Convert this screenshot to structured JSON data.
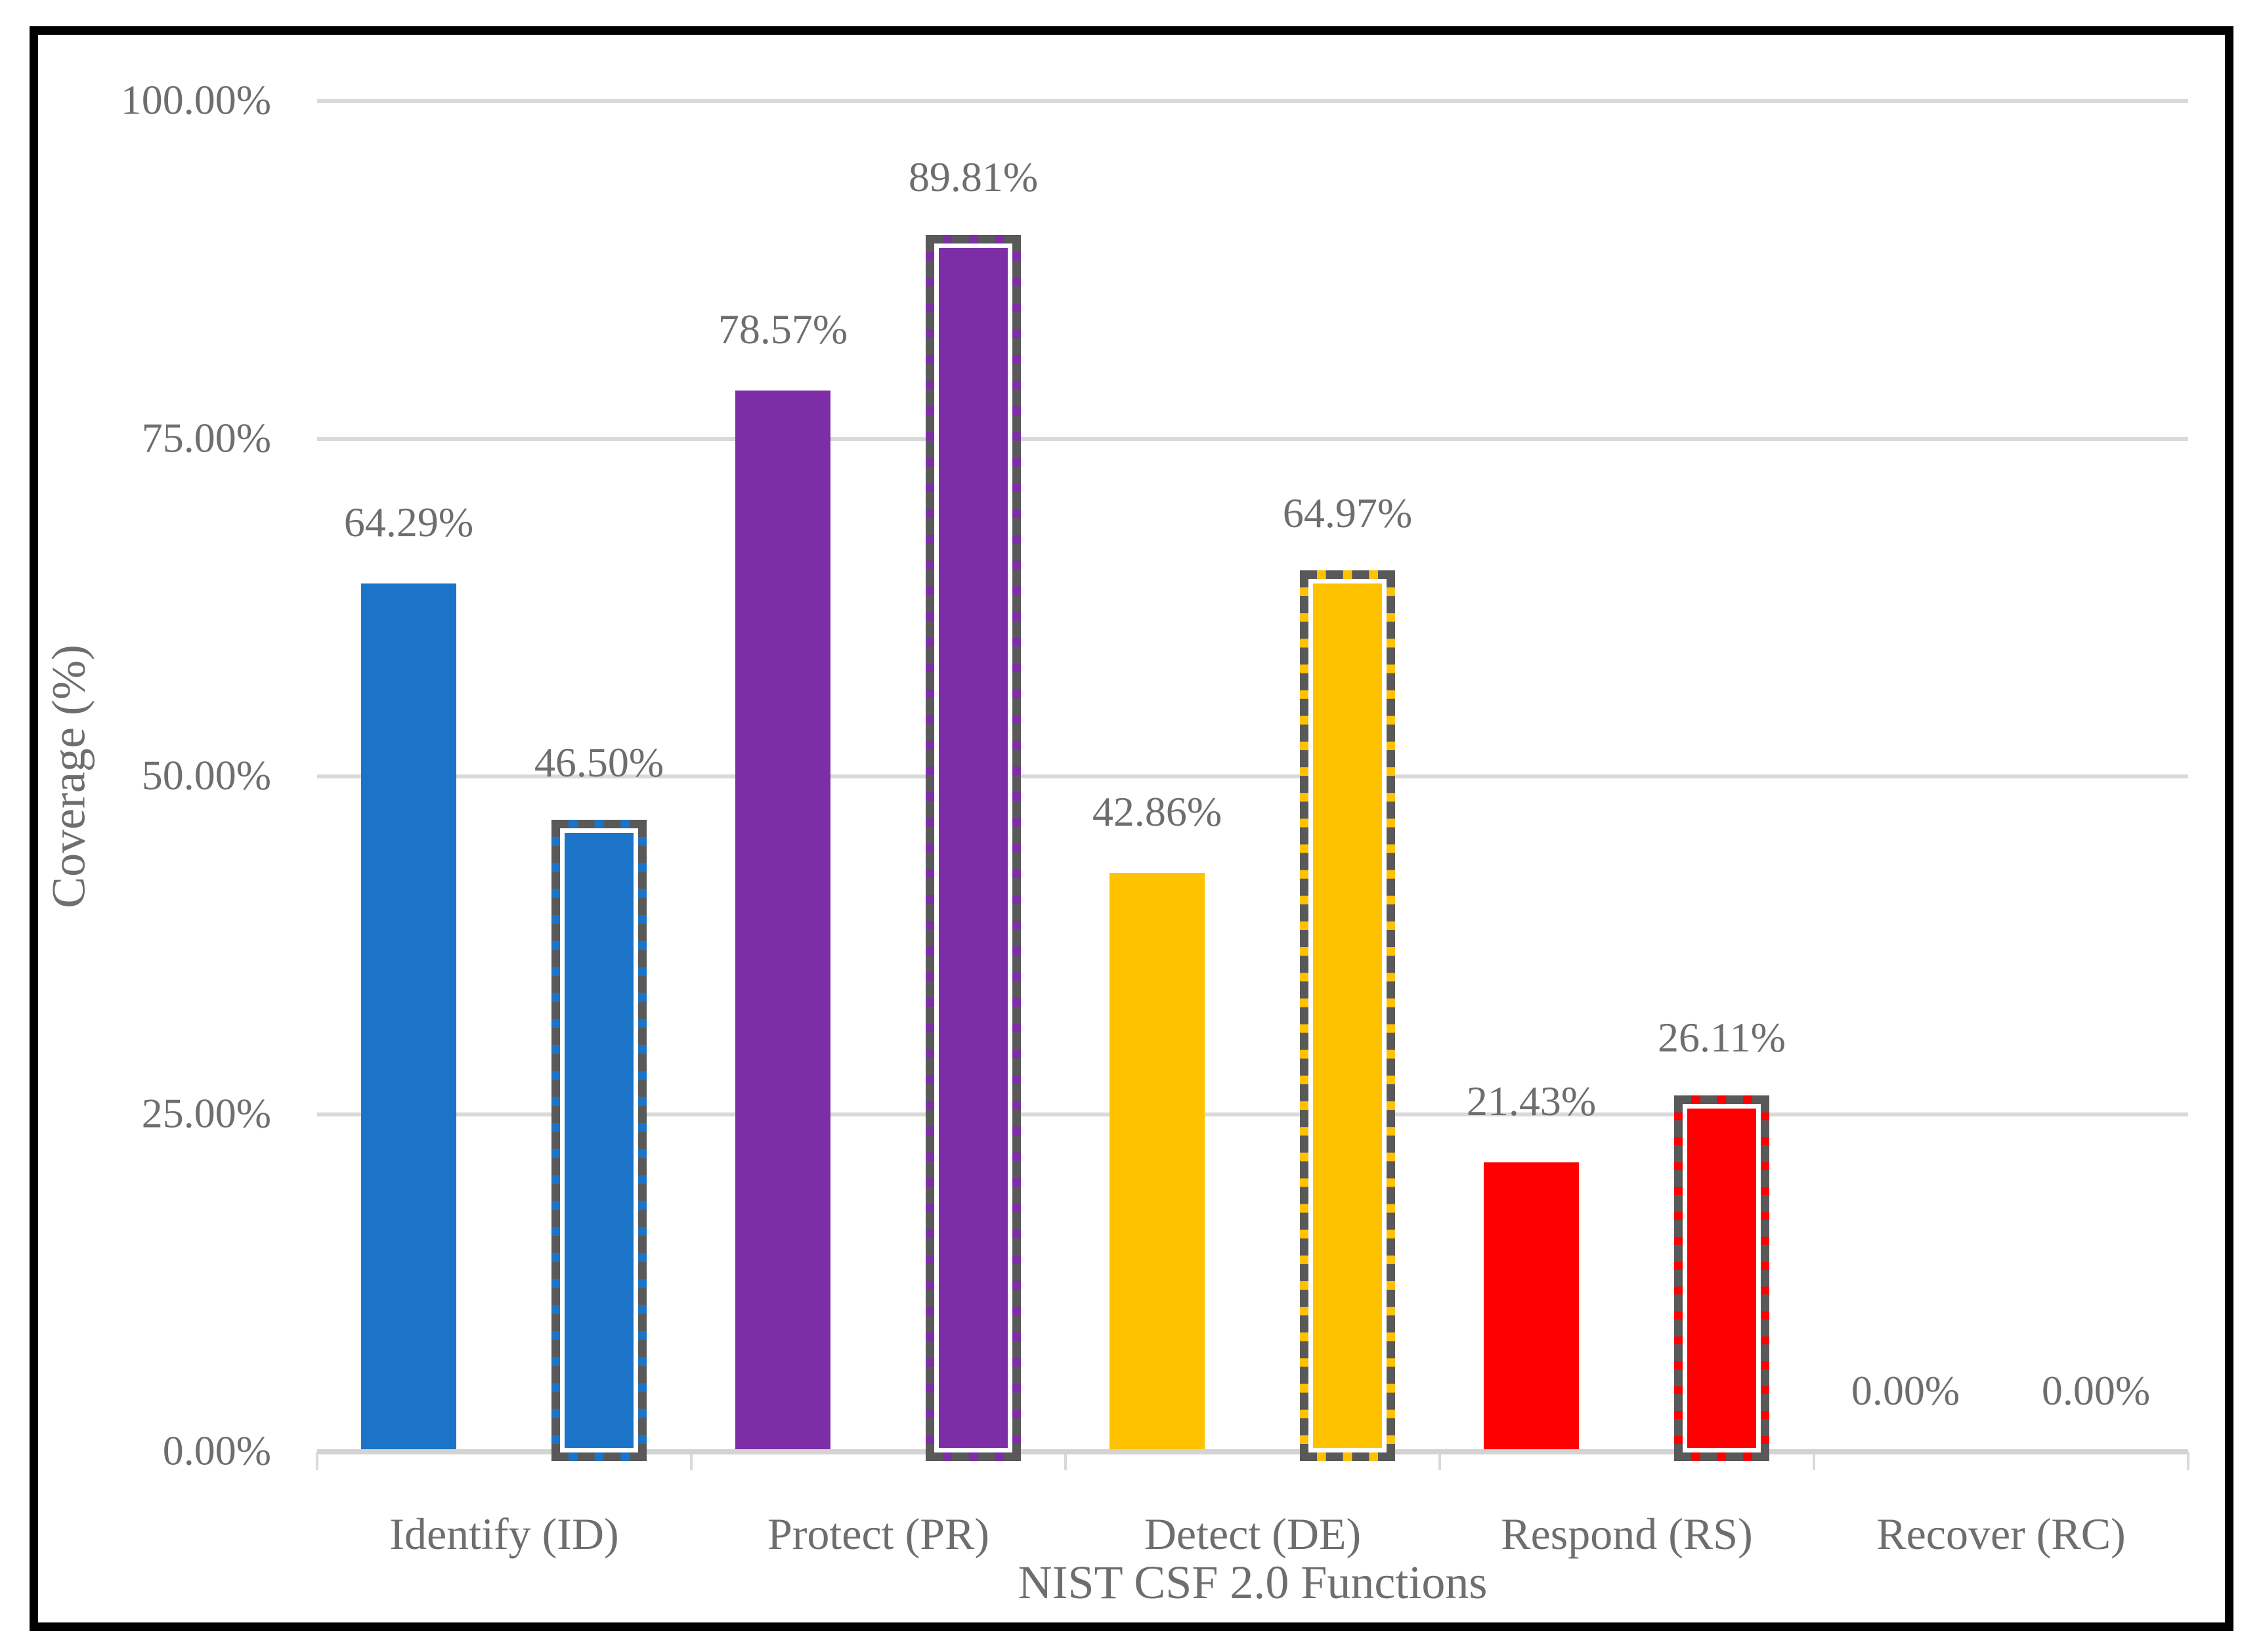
{
  "chart_data": {
    "type": "bar",
    "title": "",
    "xlabel": "NIST CSF 2.0 Functions",
    "ylabel": "Coverage (%)",
    "categories": [
      "Identify (ID)",
      "Protect (PR)",
      "Detect (DE)",
      "Respond (RS)",
      "Recover (RC)"
    ],
    "category_colors": [
      "#1B74C8",
      "#7D2EA6",
      "#FFC200",
      "#FF0000",
      "#BFBFBF"
    ],
    "series": [
      {
        "name": "solid",
        "style": "solid",
        "values": [
          64.29,
          78.57,
          42.86,
          21.43,
          0
        ],
        "labels": [
          "64.29%",
          "78.57%",
          "42.86%",
          "21.43%",
          "0.00%"
        ]
      },
      {
        "name": "dashed",
        "style": "dashed",
        "values": [
          46.5,
          89.81,
          64.97,
          26.11,
          0
        ],
        "labels": [
          "46.50%",
          "89.81%",
          "64.97%",
          "26.11%",
          "0.00%"
        ]
      }
    ],
    "y_ticks": [
      "0.00%",
      "25.00%",
      "50.00%",
      "75.00%",
      "100.00%"
    ],
    "ylim": [
      0,
      100
    ],
    "grid": true,
    "legend_position": "none",
    "colors": {
      "dashed_border": "#595959",
      "gridline": "#D9D9D9",
      "axis_line": "#D3D3D3",
      "text": "#6E6E6E",
      "frame_border": "#000000",
      "background": "#FFFFFF"
    }
  }
}
